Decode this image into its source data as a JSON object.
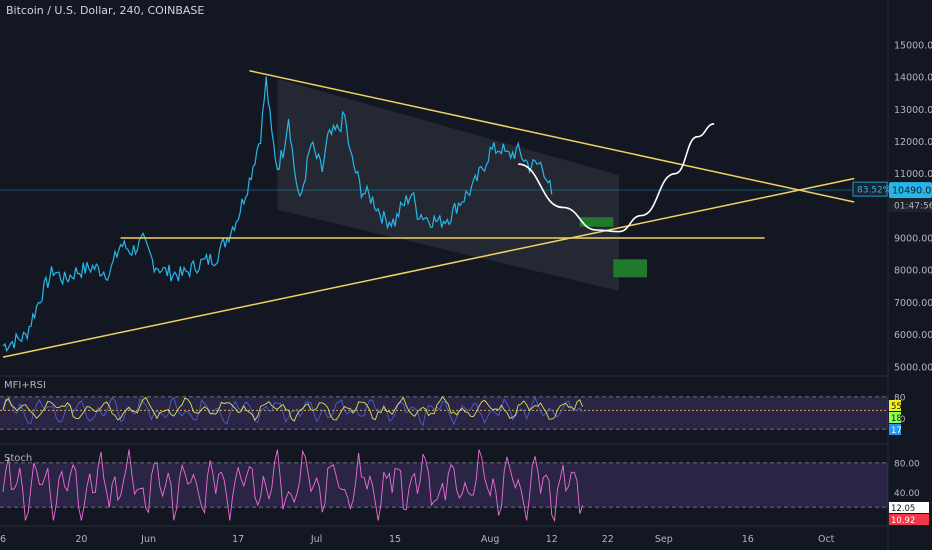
{
  "header": {
    "title": "Bitcoin / U.S. Dollar, 240, COINBASE"
  },
  "chart_data": {
    "type": "line",
    "title": "Bitcoin / U.S. Dollar, 240, COINBASE",
    "price_axis": {
      "ticks": [
        "15000.00",
        "14000.00",
        "13000.00",
        "12000.00",
        "11000.00",
        "10000.00",
        "9000.00",
        "8000.00",
        "7000.00",
        "6000.00",
        "5000.00"
      ],
      "ylim": [
        4900,
        15900
      ]
    },
    "time_axis": {
      "ticks": [
        {
          "label": "6",
          "day": 0
        },
        {
          "label": "20",
          "day": 14
        },
        {
          "label": "Jun",
          "day": 26
        },
        {
          "label": "17",
          "day": 42
        },
        {
          "label": "Jul",
          "day": 56
        },
        {
          "label": "15",
          "day": 70
        },
        {
          "label": "Aug",
          "day": 87
        },
        {
          "label": "12",
          "day": 98
        },
        {
          "label": "22",
          "day": 108
        },
        {
          "label": "Sep",
          "day": 118
        },
        {
          "label": "16",
          "day": 133
        },
        {
          "label": "Oct",
          "day": 147
        }
      ]
    },
    "price_series": {
      "name": "",
      "key_points": [
        [
          0,
          5650
        ],
        [
          4,
          5950
        ],
        [
          7,
          7300
        ],
        [
          9,
          8000
        ],
        [
          11,
          7700
        ],
        [
          13,
          7950
        ],
        [
          16,
          8100
        ],
        [
          19,
          7900
        ],
        [
          21,
          8800
        ],
        [
          23,
          8600
        ],
        [
          25,
          8900
        ],
        [
          27,
          8200
        ],
        [
          29,
          7950
        ],
        [
          32,
          7850
        ],
        [
          35,
          8200
        ],
        [
          38,
          8400
        ],
        [
          40,
          9000
        ],
        [
          42,
          9700
        ],
        [
          44,
          10800
        ],
        [
          46,
          12200
        ],
        [
          47,
          13900
        ],
        [
          48,
          12200
        ],
        [
          49,
          11200
        ],
        [
          50,
          11700
        ],
        [
          51,
          12800
        ],
        [
          52,
          11200
        ],
        [
          53,
          10100
        ],
        [
          55,
          11900
        ],
        [
          57,
          11100
        ],
        [
          58,
          12100
        ],
        [
          60,
          12400
        ],
        [
          61,
          12800
        ],
        [
          62,
          11600
        ],
        [
          64,
          10500
        ],
        [
          66,
          10200
        ],
        [
          68,
          9600
        ],
        [
          70,
          9500
        ],
        [
          71,
          9900
        ],
        [
          73,
          10400
        ],
        [
          74,
          9800
        ],
        [
          76,
          9600
        ],
        [
          78,
          9500
        ],
        [
          80,
          9700
        ],
        [
          81,
          10000
        ],
        [
          84,
          10600
        ],
        [
          86,
          11300
        ],
        [
          87,
          11700
        ],
        [
          89,
          11800
        ],
        [
          90,
          11550
        ],
        [
          92,
          11700
        ],
        [
          94,
          11250
        ],
        [
          96,
          11300
        ],
        [
          97,
          11000
        ],
        [
          98,
          10350
        ]
      ],
      "last_price": "10490.00",
      "countdown": "01:47:56",
      "percent_tag": "83.52%"
    },
    "annotations": {
      "projection_path": [
        [
          92,
          11300
        ],
        [
          100,
          9950
        ],
        [
          106,
          9250
        ],
        [
          110,
          9200
        ],
        [
          114,
          9700
        ],
        [
          120,
          11000
        ],
        [
          124,
          12150
        ],
        [
          127,
          12550
        ]
      ],
      "zones": [
        {
          "day_from": 103,
          "day_to": 109,
          "low": 9350,
          "high": 9650
        },
        {
          "day_from": 109,
          "day_to": 115,
          "low": 7780,
          "high": 8340
        }
      ],
      "horizontal_level": 9000,
      "descending_resistance": [
        [
          44,
          14200
        ],
        [
          152,
          10120
        ]
      ],
      "ascending_support": [
        [
          0,
          5300
        ],
        [
          152,
          10850
        ]
      ],
      "channel_shading": {
        "top": [
          [
            49,
            13950
          ],
          [
            110,
            10950
          ]
        ],
        "bottom": [
          [
            49,
            9880
          ],
          [
            110,
            7360
          ]
        ]
      }
    },
    "indicators": [
      {
        "name": "MFI+RSI",
        "ticks": [
          "80",
          "40"
        ],
        "levels": {
          "upper": 80,
          "mid": 55,
          "lower": 20
        },
        "ylim": [
          0,
          100
        ],
        "last_values": [
          {
            "text": "55",
            "color": "#f7f21a"
          },
          {
            "text": "18",
            "color": "#8bff54"
          },
          {
            "text": "17",
            "color": "#2196f3"
          }
        ]
      },
      {
        "name": "Stoch",
        "ticks": [
          "80.00",
          "40.00"
        ],
        "levels": {
          "upper": 80,
          "lower": 20
        },
        "ylim": [
          0,
          100
        ],
        "last_values": [
          {
            "text": "12.05",
            "color": "#ffffff"
          },
          {
            "text": "10.92",
            "color": "#f23645"
          }
        ]
      }
    ],
    "colors": {
      "background": "#131722",
      "price": "#26b7e8",
      "trendline": "#f0d264",
      "zone": "#1f7a2b",
      "projection": "#ffffff",
      "stoch": "#f06dd9",
      "rsi": "#d8e35a",
      "mfi": "#4b63cc"
    }
  }
}
